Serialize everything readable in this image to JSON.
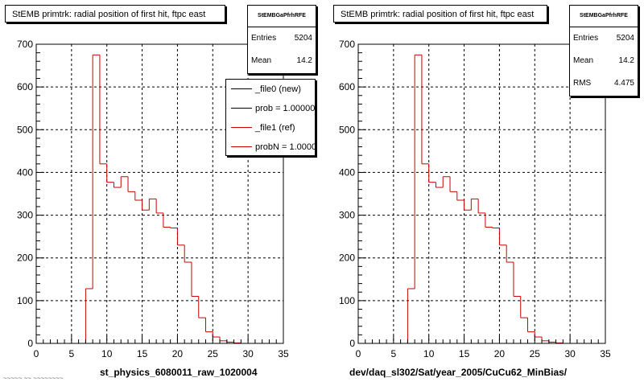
{
  "colors": {
    "ref": "#cc0000",
    "new": "#000000",
    "grid": "#000000"
  },
  "footer": "~~~~~ ~~ ~~~~~~~~",
  "chart_data": [
    {
      "type": "bar",
      "title": "StEMB primtrk: radial position of first hit, ftpc east",
      "xlabel": "st_physics_6080011_raw_1020004",
      "ylabel": "",
      "xlim": [
        0,
        35
      ],
      "ylim": [
        0,
        700
      ],
      "xticks": [
        "0",
        "5",
        "10",
        "15",
        "20",
        "25",
        "30",
        "35"
      ],
      "yticks": [
        "0",
        "100",
        "200",
        "300",
        "400",
        "500",
        "600",
        "700"
      ],
      "grid": true,
      "bin_width": 1,
      "x": [
        0,
        1,
        2,
        3,
        4,
        5,
        6,
        7,
        8,
        9,
        10,
        11,
        12,
        13,
        14,
        15,
        16,
        17,
        18,
        19,
        20,
        21,
        22,
        23,
        24,
        25,
        26,
        27,
        28,
        29,
        30,
        31,
        32,
        33,
        34
      ],
      "series": [
        {
          "values": [
            0,
            0,
            0,
            0,
            0,
            0,
            0,
            128,
            675,
            420,
            377,
            365,
            390,
            355,
            335,
            312,
            338,
            305,
            272,
            270,
            230,
            190,
            110,
            60,
            27,
            15,
            6,
            3,
            1,
            0,
            0,
            0,
            0,
            0,
            0
          ]
        }
      ],
      "stats": {
        "name": "StEMBGaPfrhRFE",
        "rows": [
          {
            "label": "Entries",
            "value": "5204"
          },
          {
            "label": "Mean",
            "value": "14.2"
          }
        ]
      },
      "legend": [
        {
          "label": "_file0 (new)",
          "color": "#000000"
        },
        {
          "label": "prob = 1.000000",
          "color": "#000000"
        },
        {
          "label": "_file1 (ref)",
          "color": "#cc0000"
        },
        {
          "label": "probN = 1.000000",
          "color": "#cc0000"
        }
      ]
    },
    {
      "type": "bar",
      "title": "StEMB primtrk: radial position of first hit, ftpc east",
      "xlabel": "dev/daq_sl302/Sat/year_2005/CuCu62_MinBias/",
      "ylabel": "",
      "xlim": [
        0,
        35
      ],
      "ylim": [
        0,
        700
      ],
      "xticks": [
        "0",
        "5",
        "10",
        "15",
        "20",
        "25",
        "30",
        "35"
      ],
      "yticks": [
        "0",
        "100",
        "200",
        "300",
        "400",
        "500",
        "600",
        "700"
      ],
      "grid": true,
      "bin_width": 1,
      "x": [
        0,
        1,
        2,
        3,
        4,
        5,
        6,
        7,
        8,
        9,
        10,
        11,
        12,
        13,
        14,
        15,
        16,
        17,
        18,
        19,
        20,
        21,
        22,
        23,
        24,
        25,
        26,
        27,
        28,
        29,
        30,
        31,
        32,
        33,
        34
      ],
      "series": [
        {
          "values": [
            0,
            0,
            0,
            0,
            0,
            0,
            0,
            128,
            675,
            420,
            377,
            365,
            390,
            355,
            335,
            312,
            338,
            305,
            272,
            270,
            230,
            190,
            110,
            60,
            27,
            15,
            6,
            3,
            1,
            0,
            0,
            0,
            0,
            0,
            0
          ]
        }
      ],
      "stats": {
        "name": "StEMBGaPfrhRFE",
        "rows": [
          {
            "label": "Entries",
            "value": "5204"
          },
          {
            "label": "Mean",
            "value": "14.2"
          },
          {
            "label": "RMS",
            "value": "4.475"
          }
        ]
      },
      "legend": []
    }
  ]
}
